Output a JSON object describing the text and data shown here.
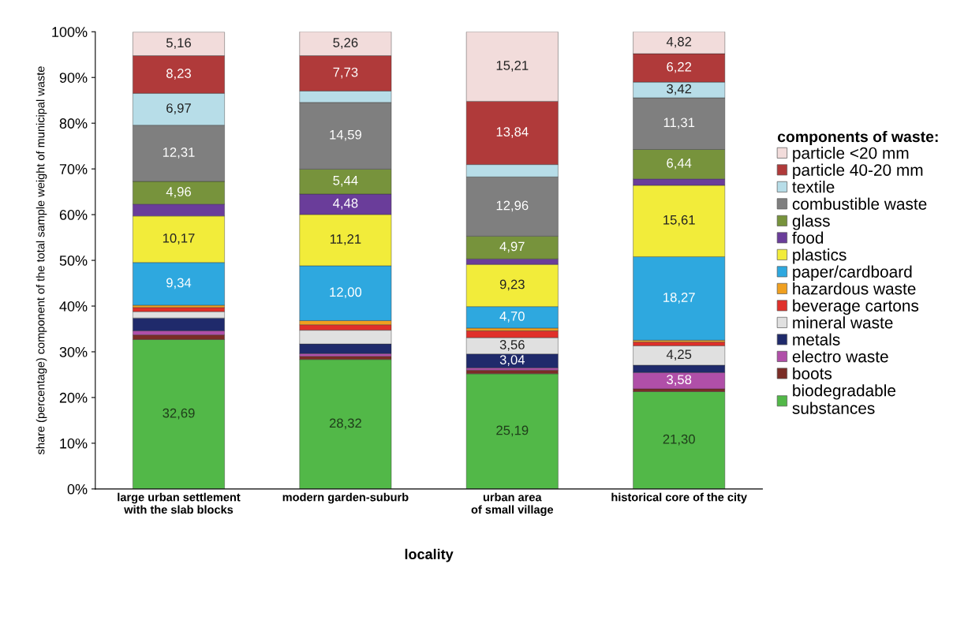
{
  "chart_data": {
    "type": "bar",
    "stacked": true,
    "xlabel": "locality",
    "ylabel": "share (percentage) component of the total sample weight of municipal waste",
    "legend_title": "components of waste:",
    "legend": "right",
    "categories": [
      "large urban settlement\nwith the slab blocks",
      "modern garden-suburb",
      "urban area\nof small village",
      "historical core of the city"
    ],
    "ylim": [
      0,
      100
    ],
    "yticks": [
      {
        "value": 0,
        "label": "0%"
      },
      {
        "value": 10,
        "label": "10%"
      },
      {
        "value": 20,
        "label": "20%"
      },
      {
        "value": 30,
        "label": "30%"
      },
      {
        "value": 40,
        "label": "40%"
      },
      {
        "value": 50,
        "label": "50%"
      },
      {
        "value": 60,
        "label": "60%"
      },
      {
        "value": 70,
        "label": "70%"
      },
      {
        "value": 80,
        "label": "80%"
      },
      {
        "value": 90,
        "label": "90%"
      },
      {
        "value": 100,
        "label": "100%"
      }
    ],
    "series": [
      {
        "name": "biodegradable\nsubstances",
        "color": "#52b848",
        "values": [
          32.69,
          28.32,
          25.19,
          21.3
        ],
        "value_labels": [
          "32,69",
          "28,32",
          "25,19",
          "21,30"
        ]
      },
      {
        "name": "boots",
        "color": "#7b2d26",
        "values": [
          1.0,
          0.7,
          0.8,
          0.6
        ],
        "value_labels": [
          null,
          null,
          null,
          null
        ]
      },
      {
        "name": "electro waste",
        "color": "#b04fa8",
        "values": [
          0.9,
          0.6,
          0.5,
          3.58
        ],
        "value_labels": [
          null,
          null,
          null,
          "3,58"
        ]
      },
      {
        "name": "metals",
        "color": "#1f2a6b",
        "values": [
          2.8,
          2.1,
          3.04,
          1.6
        ],
        "value_labels": [
          null,
          null,
          "3,04",
          null
        ]
      },
      {
        "name": "mineral waste",
        "color": "#e0e0e0",
        "values": [
          1.4,
          3.0,
          3.56,
          4.25
        ],
        "value_labels": [
          null,
          null,
          "3,56",
          "4,25"
        ]
      },
      {
        "name": "beverage cartons",
        "color": "#e0302a",
        "values": [
          0.9,
          1.2,
          1.5,
          0.8
        ],
        "value_labels": [
          null,
          null,
          null,
          null
        ]
      },
      {
        "name": "hazardous waste",
        "color": "#f0a020",
        "values": [
          0.5,
          0.9,
          0.6,
          0.4
        ],
        "value_labels": [
          null,
          null,
          null,
          null
        ]
      },
      {
        "name": "paper/cardboard",
        "color": "#2ea8df",
        "values": [
          9.34,
          12.0,
          4.7,
          18.27
        ],
        "value_labels": [
          "9,34",
          "12,00",
          "4,70",
          "18,27"
        ]
      },
      {
        "name": "plastics",
        "color": "#f2ec3a",
        "values": [
          10.17,
          11.21,
          9.23,
          15.61
        ],
        "value_labels": [
          "10,17",
          "11,21",
          "9,23",
          "15,61"
        ]
      },
      {
        "name": "food",
        "color": "#6a3d9a",
        "values": [
          2.6,
          4.48,
          1.2,
          1.4
        ],
        "value_labels": [
          null,
          "4,48",
          null,
          null
        ]
      },
      {
        "name": "glass",
        "color": "#77933c",
        "values": [
          4.96,
          5.44,
          4.97,
          6.44
        ],
        "value_labels": [
          "4,96",
          "5,44",
          "4,97",
          "6,44"
        ]
      },
      {
        "name": "combustible waste",
        "color": "#7f7f7f",
        "values": [
          12.31,
          14.59,
          12.96,
          11.31
        ],
        "value_labels": [
          "12,31",
          "14,59",
          "12,96",
          "11,31"
        ]
      },
      {
        "name": "textile",
        "color": "#b7dde8",
        "values": [
          6.97,
          2.5,
          2.7,
          3.42
        ],
        "value_labels": [
          "6,97",
          null,
          null,
          "3,42"
        ]
      },
      {
        "name": "particle 40-20 mm",
        "color": "#b03a3a",
        "values": [
          8.23,
          7.73,
          13.84,
          6.22
        ],
        "value_labels": [
          "8,23",
          "7,73",
          "13,84",
          "6,22"
        ]
      },
      {
        "name": "particle <20 mm",
        "color": "#f2dcdb",
        "values": [
          5.16,
          5.26,
          15.21,
          4.82
        ],
        "value_labels": [
          "5,16",
          "5,26",
          "15,21",
          "4,82"
        ]
      }
    ]
  }
}
